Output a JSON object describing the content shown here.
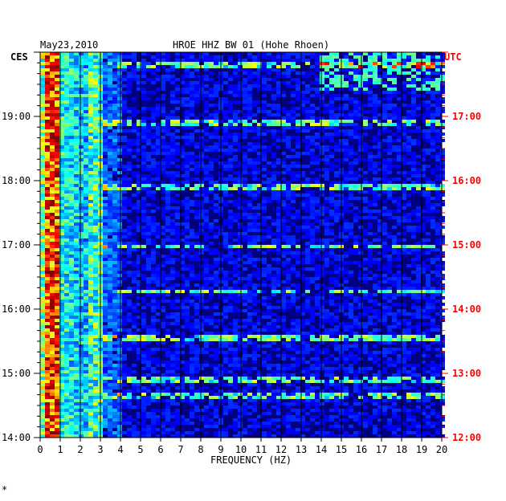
{
  "chart_data": {
    "type": "heatmap",
    "header_date": "May23,2010",
    "title": "HROE HHZ BW 01 (Hohe Rhoen)",
    "left_zone": "CES",
    "right_zone": "UTC",
    "xlabel": "FREQUENCY (HZ)",
    "x_ticks": [
      "0",
      "1",
      "2",
      "3",
      "4",
      "5",
      "6",
      "7",
      "8",
      "9",
      "10",
      "11",
      "12",
      "13",
      "14",
      "15",
      "16",
      "17",
      "18",
      "19",
      "20"
    ],
    "xlim": [
      0,
      20
    ],
    "left_time_ticks": [
      "19:00",
      "18:00",
      "17:00",
      "16:00",
      "15:00",
      "14:00"
    ],
    "right_time_ticks": [
      "17:00",
      "16:00",
      "15:00",
      "14:00",
      "13:00",
      "12:00"
    ],
    "time_range_utc": [
      "12:00",
      "18:00"
    ],
    "colormap": [
      "#000080",
      "#0000ff",
      "#00ffff",
      "#ffff00",
      "#ff0000",
      "#800000"
    ],
    "left_label_color": "#000000",
    "right_label_color": "#ff0000",
    "strong_band_hz": [
      0.3,
      1.0
    ],
    "secondary_band_hz": [
      2.5,
      3.0
    ],
    "noise_lines_utc": [
      "17:50",
      "16:55",
      "15:55",
      "15:00",
      "14:18",
      "13:35",
      "12:56",
      "12:40"
    ],
    "footnote": "*"
  }
}
